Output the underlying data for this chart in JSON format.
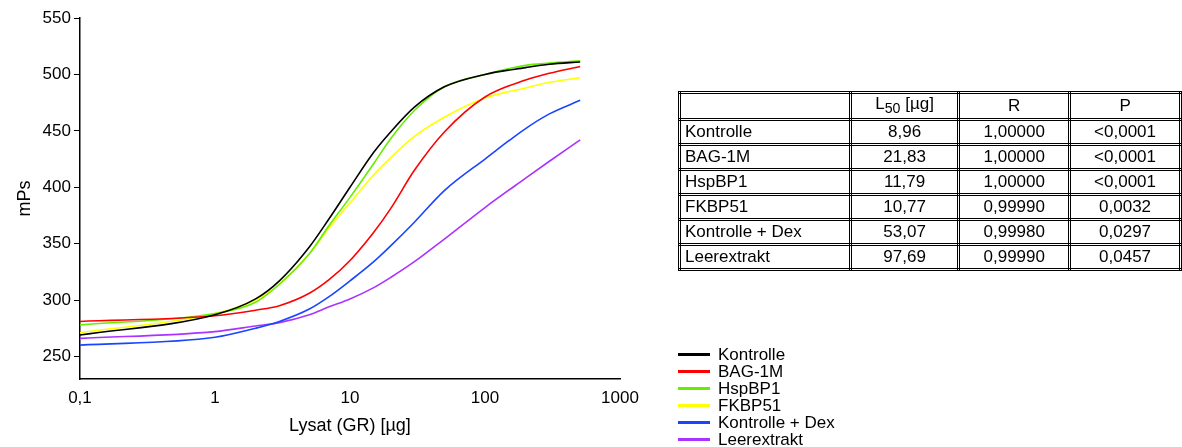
{
  "chart_data": [
    {
      "type": "line",
      "xlabel": "Lysat (GR) [µg]",
      "ylabel": "mPs",
      "x": [
        0.1,
        1,
        2,
        3,
        5,
        7,
        10,
        15,
        20,
        30,
        50,
        100,
        200,
        300,
        507
      ],
      "series": [
        {
          "name": "Kontrolle",
          "color": "#000000",
          "values": [
            269,
            287,
            301,
            317,
            347,
            372,
            400,
            431,
            449,
            471,
            489,
            500,
            506,
            509,
            511
          ]
        },
        {
          "name": "BAG-1M",
          "color": "#ff0000",
          "values": [
            281,
            286,
            291,
            295,
            306,
            318,
            335,
            360,
            381,
            415,
            449,
            480,
            495,
            501,
            507
          ]
        },
        {
          "name": "HspBP1",
          "color": "#66ee00",
          "values": [
            278,
            288,
            298,
            314,
            341,
            366,
            391,
            421,
            443,
            468,
            489,
            500,
            508,
            510,
            512
          ]
        },
        {
          "name": "FKBP51",
          "color": "#ffff00",
          "values": [
            271,
            288,
            300,
            314,
            341,
            364,
            386,
            411,
            426,
            445,
            462,
            479,
            488,
            493,
            497
          ]
        },
        {
          "name": "Kontrolle + Dex",
          "color": "#1a44ff",
          "values": [
            260,
            267,
            275,
            281,
            292,
            303,
            317,
            334,
            348,
            369,
            397,
            425,
            452,
            465,
            477
          ]
        },
        {
          "name": "Leerextrakt",
          "color": "#aa33ff",
          "values": [
            266,
            272,
            277,
            280,
            287,
            294,
            301,
            311,
            320,
            334,
            354,
            382,
            408,
            423,
            442
          ]
        }
      ],
      "log": "x",
      "xlim": [
        0.1,
        1000
      ],
      "xticks": [
        {
          "value": 0.1,
          "label": "0,1"
        },
        1,
        10,
        100,
        1000
      ],
      "ylim": [
        230,
        550
      ],
      "yticks": [
        250,
        300,
        350,
        400,
        450,
        500,
        550
      ],
      "grid": false,
      "legend": "bottom right",
      "marker": "none",
      "line_style": "solid"
    },
    {
      "type": "other",
      "categories": [
        null,
        "L$_{50}$ [µg]",
        "R",
        "P"
      ],
      "y_categories": [
        "Kontrolle",
        "BAG-1M",
        "HspBP1",
        "FKBP51",
        "Kontrolle + Dex",
        "Leerextrakt"
      ],
      "cell_labels": [
        [
          "8,96",
          "1,00000",
          "<0,0001"
        ],
        [
          "21,83",
          "1,00000",
          "<0,0001"
        ],
        [
          "11,79",
          "1,00000",
          "<0,0001"
        ],
        [
          "10,77",
          "0,99990",
          "0,0032"
        ],
        [
          "53,07",
          "0,99980",
          "0,0297"
        ],
        [
          "97,69",
          "0,99990",
          "0,0457"
        ]
      ]
    }
  ]
}
